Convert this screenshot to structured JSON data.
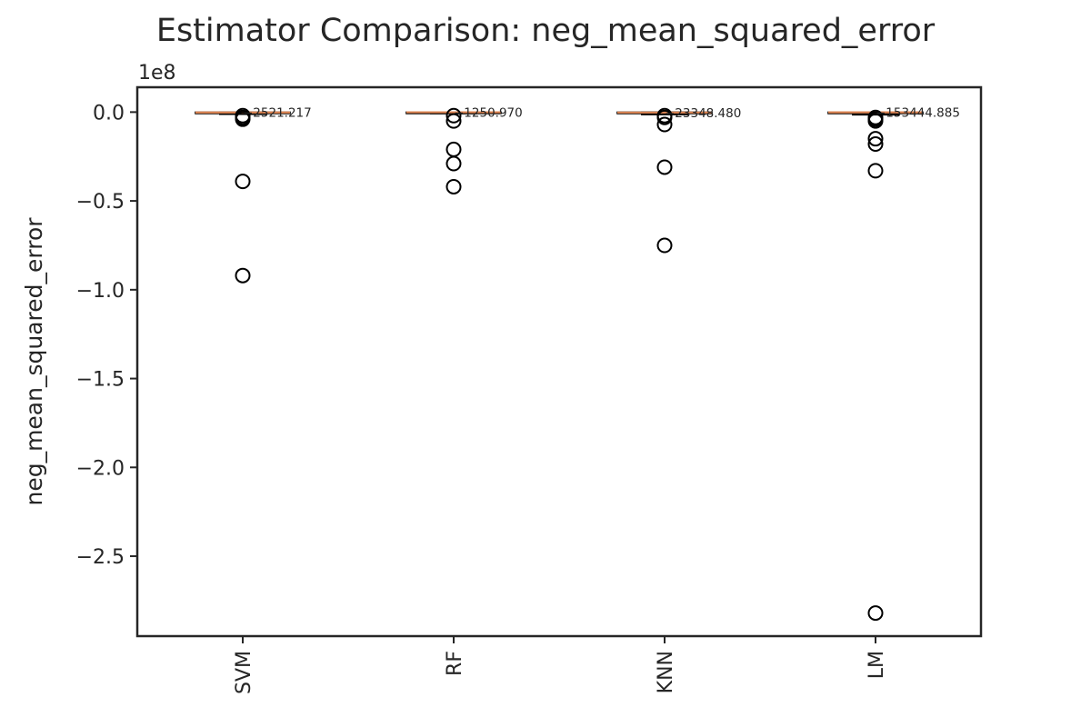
{
  "chart_data": {
    "type": "box",
    "title": "Estimator Comparison: neg_mean_squared_error",
    "xlabel": "",
    "ylabel": "neg_mean_squared_error",
    "y_scale_label": "1e8",
    "y_scale": 100000000,
    "ylim": [
      -2.95,
      0.14
    ],
    "yticks": [
      0.0,
      -0.5,
      -1.0,
      -1.5,
      -2.0,
      -2.5
    ],
    "ytick_labels": [
      "0.0",
      "−0.5",
      "−1.0",
      "−1.5",
      "−2.0",
      "−2.5"
    ],
    "categories": [
      "SVM",
      "RF",
      "KNN",
      "LM"
    ],
    "boxes": [
      {
        "q1": -0.006,
        "median": -0.0019,
        "q3": -0.0003,
        "whisker_low": -0.012,
        "whisker_high": 0.0,
        "fliers": [
          -0.02,
          -0.03,
          -0.04,
          -0.39,
          -0.92
        ],
        "annotation": "−2521.217"
      },
      {
        "q1": -0.004,
        "median": -0.0011,
        "q3": -0.0002,
        "whisker_low": -0.008,
        "whisker_high": 0.0,
        "fliers": [
          -0.02,
          -0.05,
          -0.21,
          -0.29,
          -0.42
        ],
        "annotation": "−1250.970"
      },
      {
        "q1": -0.007,
        "median": -0.0023,
        "q3": -0.0004,
        "whisker_low": -0.014,
        "whisker_high": 0.0,
        "fliers": [
          -0.02,
          -0.03,
          -0.07,
          -0.31,
          -0.75
        ],
        "annotation": "−23348.480"
      },
      {
        "q1": -0.008,
        "median": -0.0015,
        "q3": -0.0003,
        "whisker_low": -0.015,
        "whisker_high": 0.0,
        "fliers": [
          -0.03,
          -0.04,
          -0.05,
          -0.15,
          -0.18,
          -0.33,
          -2.82
        ],
        "annotation": "−153444.885"
      }
    ],
    "grid": false,
    "legend": "none",
    "colors": {
      "box": "#000000",
      "median": "#dd8452",
      "flier": "#000000",
      "spine": "#262626"
    }
  }
}
